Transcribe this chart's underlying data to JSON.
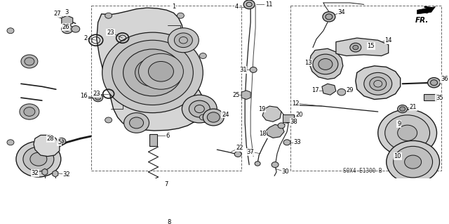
{
  "bg_color": "#ffffff",
  "fig_width": 6.4,
  "fig_height": 3.19,
  "dpi": 100,
  "diagram_code": "S0X4-E1300 B",
  "fr_label": "FR.",
  "line_color": "#1a1a1a",
  "gray_fill": "#d0d0d0",
  "gray_mid": "#b8b8b8",
  "gray_dark": "#888888",
  "label_fontsize": 6.0,
  "label_color": "#000000"
}
